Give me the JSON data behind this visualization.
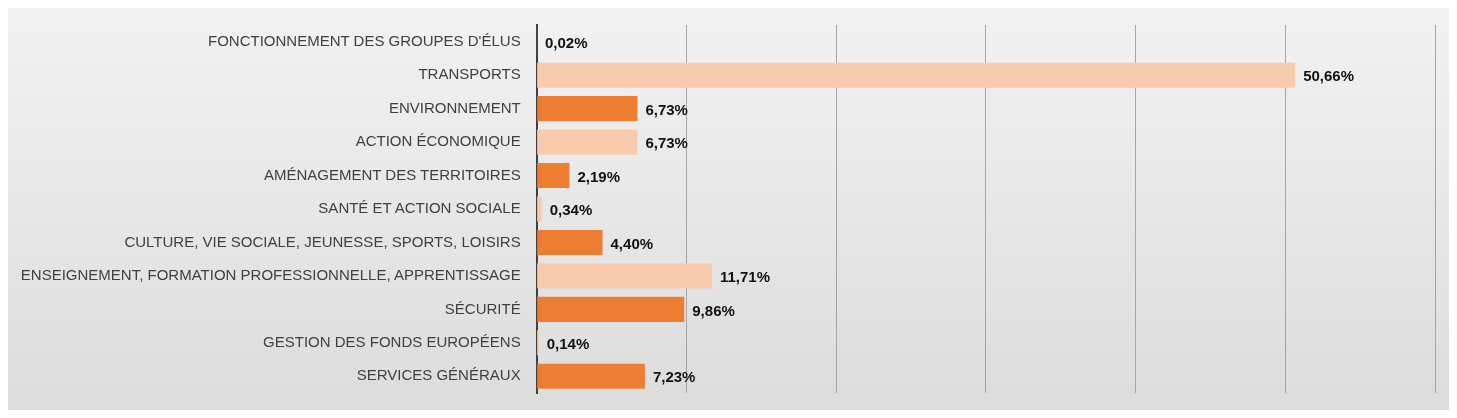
{
  "chart_data": {
    "type": "bar",
    "orientation": "horizontal",
    "categories": [
      "FONCTIONNEMENT DES GROUPES D'ÉLUS",
      "TRANSPORTS",
      "ENVIRONNEMENT",
      "ACTION ÉCONOMIQUE",
      "AMÉNAGEMENT DES TERRITOIRES",
      "SANTÉ ET ACTION SOCIALE",
      "CULTURE, VIE SOCIALE, JEUNESSE, SPORTS, LOISIRS",
      "ENSEIGNEMENT, FORMATION PROFESSIONNELLE, APPRENTISSAGE",
      "SÉCURITÉ",
      "GESTION DES FONDS EUROPÉENS",
      "SERVICES GÉNÉRAUX"
    ],
    "values": [
      0.02,
      50.66,
      6.73,
      6.73,
      2.19,
      0.34,
      4.4,
      11.71,
      9.86,
      0.14,
      7.23
    ],
    "colors": [
      "#ed7d31",
      "#f8cbad",
      "#ed7d31",
      "#f8cbad",
      "#ed7d31",
      "#f8cbad",
      "#ed7d31",
      "#f8cbad",
      "#ed7d31",
      "#f8cbad",
      "#ed7d31"
    ],
    "value_labels": [
      "0,02%",
      "50,66%",
      "6,73%",
      "6,73%",
      "2,19%",
      "0,34%",
      "4,40%",
      "11,71%",
      "9,86%",
      "0,14%",
      "7,23%"
    ],
    "xlim": [
      0,
      60
    ],
    "xticks": [
      {
        "value": 0,
        "label": null
      },
      {
        "value": 10,
        "label": null
      },
      {
        "value": 20,
        "label": null
      },
      {
        "value": 30,
        "label": null
      },
      {
        "value": 40,
        "label": null
      },
      {
        "value": 50,
        "label": null
      },
      {
        "value": 60,
        "label": null
      }
    ],
    "tick_labels": "y",
    "grid": "x"
  }
}
